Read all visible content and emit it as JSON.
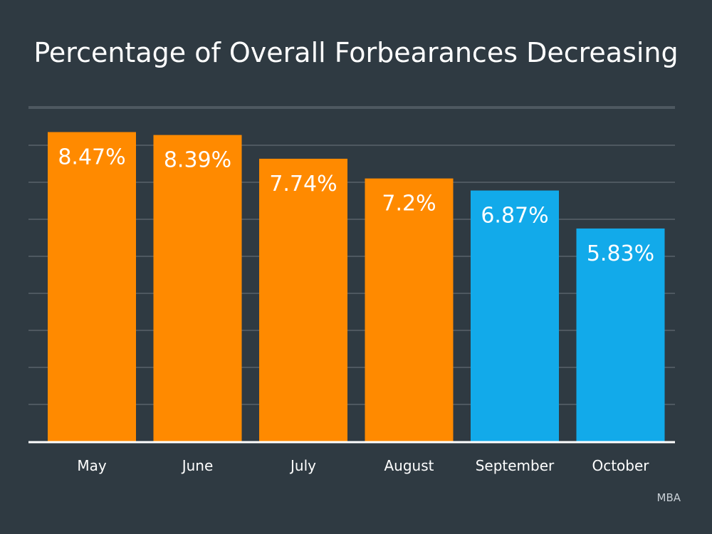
{
  "title": "Percentage of Overall Forbearances Decreasing",
  "source": "MBA",
  "colors": {
    "background": "#2f3a42",
    "orange": "#ff8a00",
    "blue": "#12aaea",
    "grid": "#6c767d",
    "axis": "#ffffff",
    "text": "#ffffff"
  },
  "chart_data": {
    "type": "bar",
    "title": "Percentage of Overall Forbearances Decreasing",
    "categories": [
      "May",
      "June",
      "July",
      "August",
      "September",
      "October"
    ],
    "values": [
      8.47,
      8.39,
      7.74,
      7.2,
      6.87,
      5.83
    ],
    "data_labels": [
      "8.47%",
      "8.39%",
      "7.74%",
      "7.2%",
      "6.87%",
      "5.83%"
    ],
    "bar_colors": [
      "#ff8a00",
      "#ff8a00",
      "#ff8a00",
      "#ff8a00",
      "#12aaea",
      "#12aaea"
    ],
    "xlabel": "",
    "ylabel": "",
    "ylim": [
      0,
      9.2
    ],
    "grid": true,
    "legend": "none"
  }
}
